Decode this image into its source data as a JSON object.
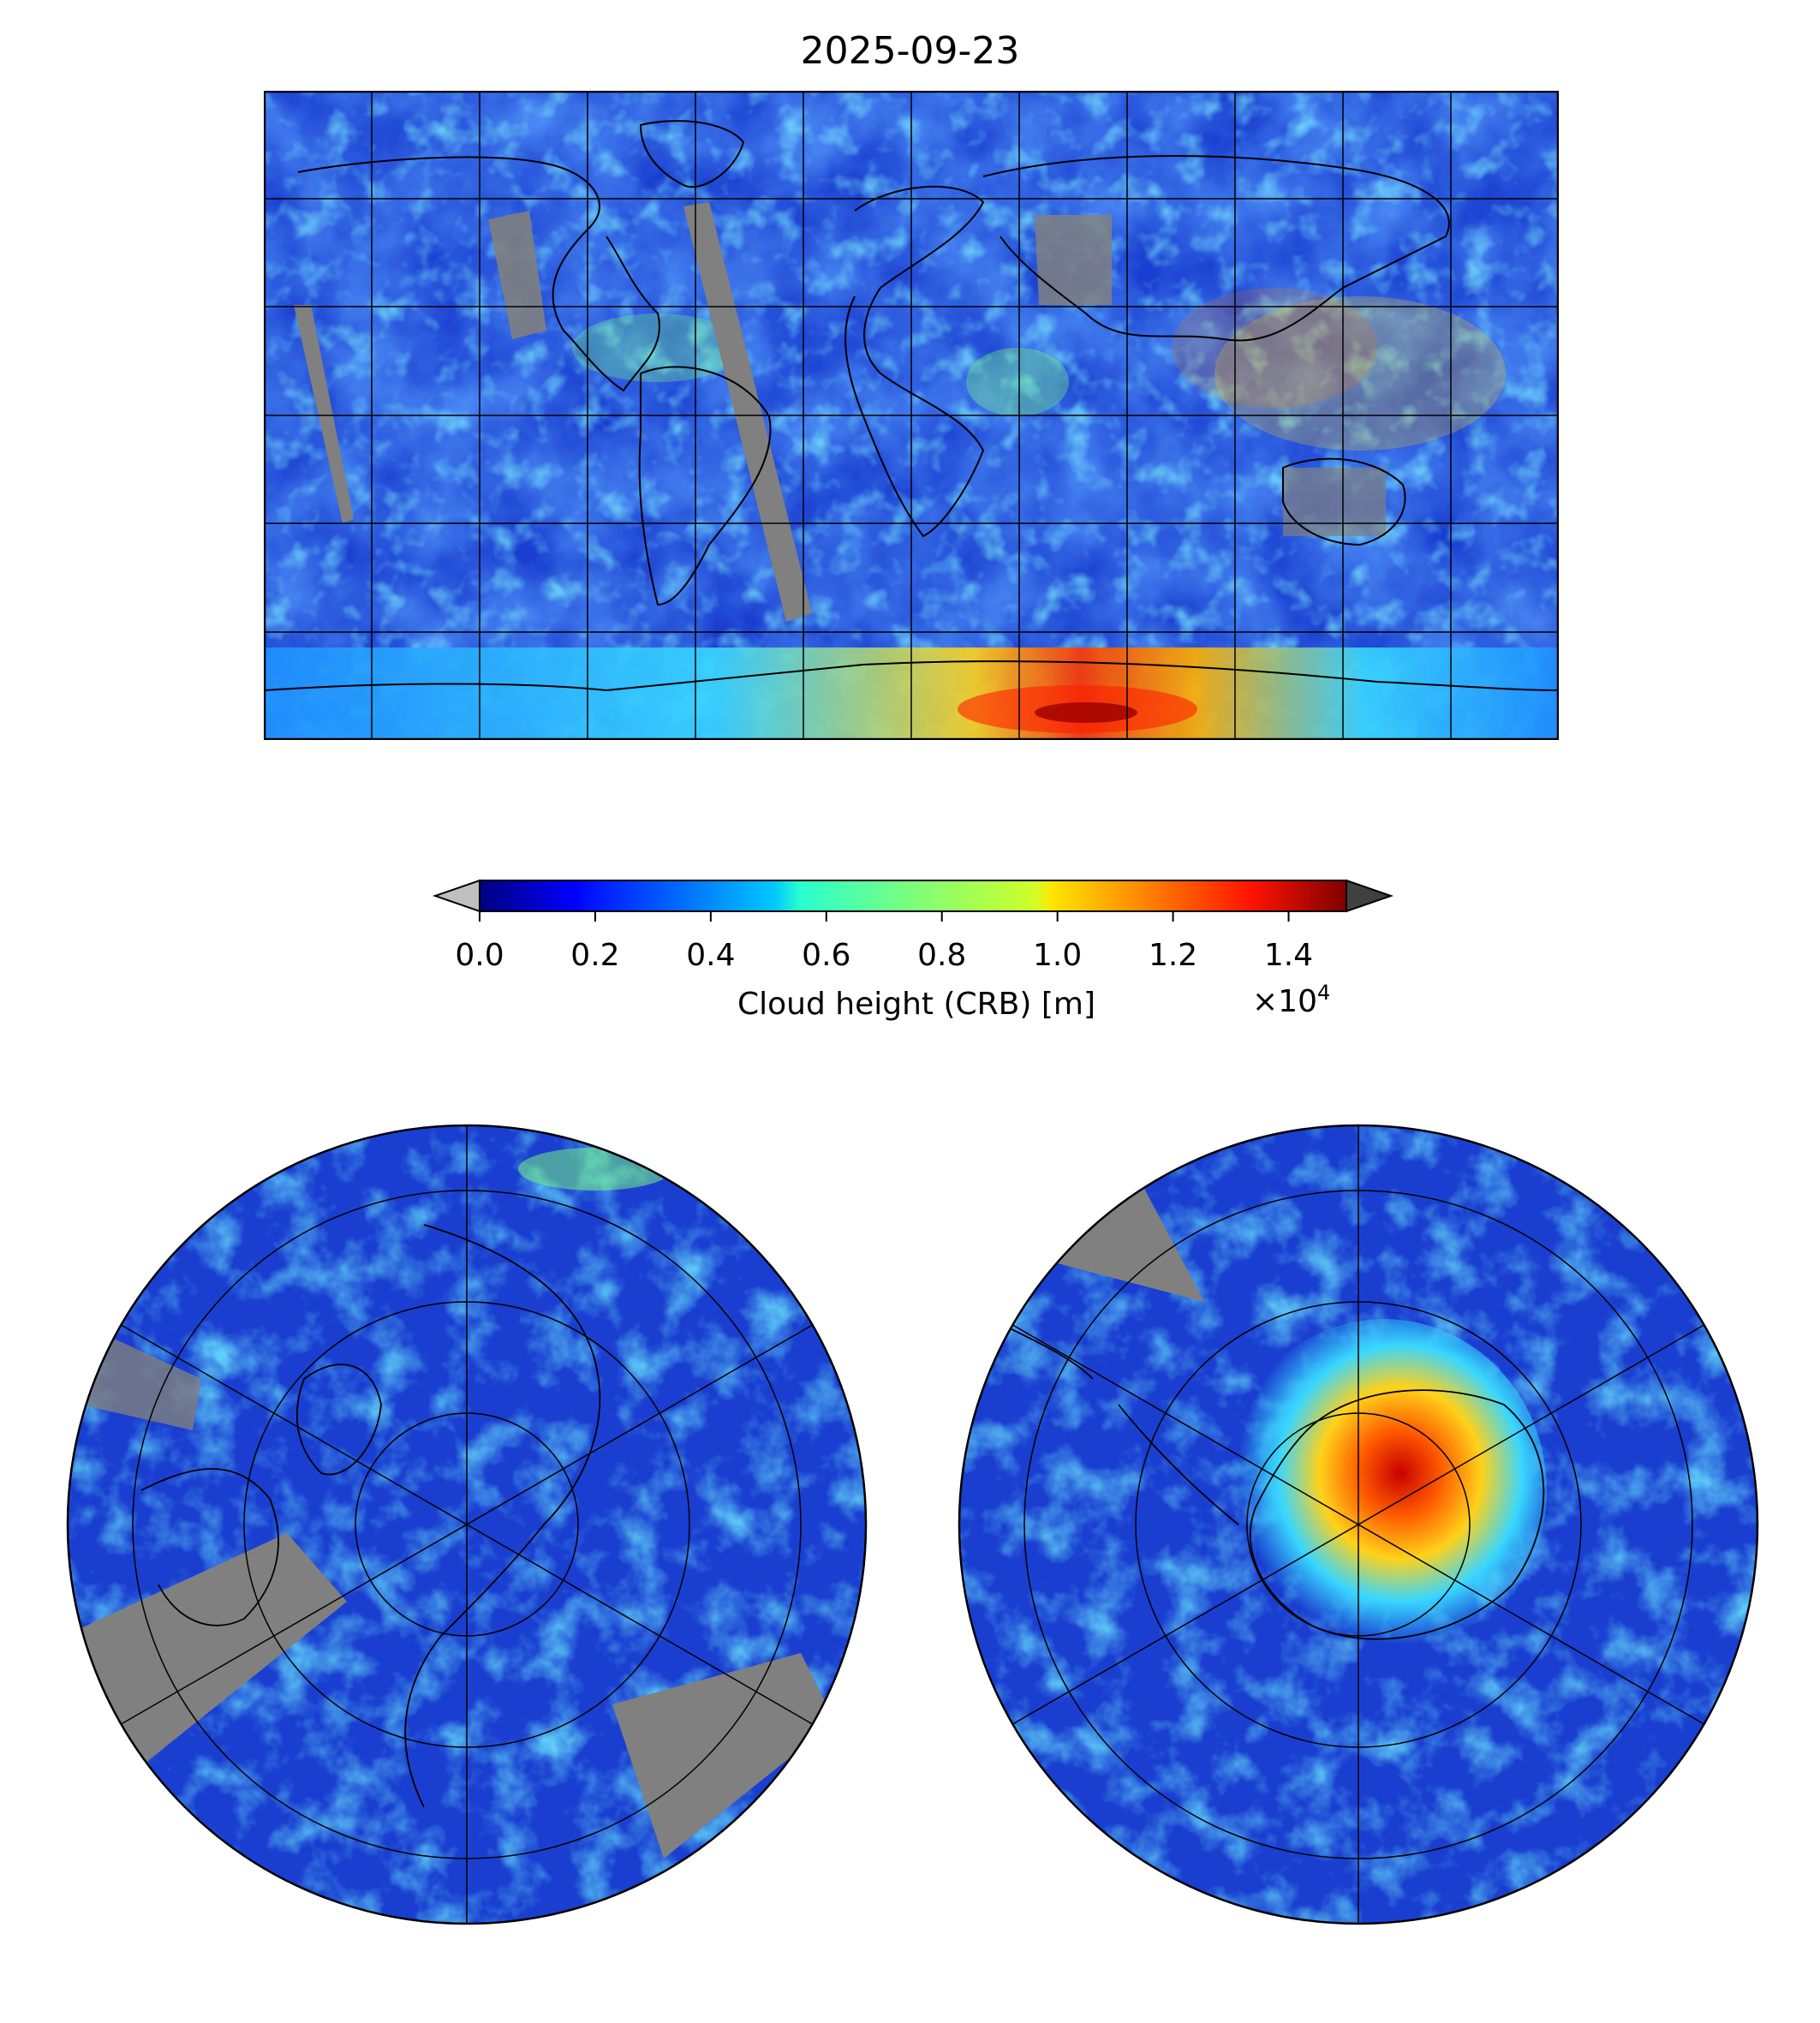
{
  "figure": {
    "title": "2025-09-23"
  },
  "colorbar": {
    "label": "Cloud height (CRB) [m]",
    "exponent_base": "×10",
    "exponent_power": "4",
    "ticks": [
      "0.0",
      "0.2",
      "0.4",
      "0.6",
      "0.8",
      "1.0",
      "1.2",
      "1.4"
    ],
    "min": 0.0,
    "max": 1.5,
    "under_color": "#c0c0c0",
    "over_color": "#404040",
    "colormap": "jet"
  },
  "colors": {
    "ocean_base": "#1a3fd0",
    "no_data": "#808080",
    "coastline": "#000000"
  },
  "chart_data": [
    {
      "type": "heatmap",
      "projection": "equirectangular",
      "title": "2025-09-23",
      "grid": true,
      "lon_range": [
        -180,
        180
      ],
      "lat_range": [
        -90,
        90
      ],
      "gridline_lon_step": 30,
      "gridline_lat_step": 30
    },
    {
      "type": "heatmap",
      "projection": "north-polar-stereographic",
      "grid": true
    },
    {
      "type": "heatmap",
      "projection": "south-polar-stereographic",
      "grid": true
    }
  ]
}
